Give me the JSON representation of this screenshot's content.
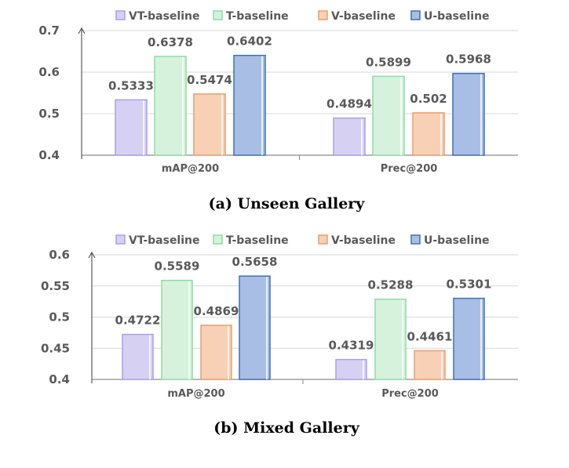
{
  "chart_data": [
    {
      "type": "bar",
      "caption": "(a) Unseen Gallery",
      "categories": [
        "mAP@200",
        "Prec@200"
      ],
      "series": [
        {
          "name": "VT-baseline",
          "values": [
            0.5333,
            0.4894
          ],
          "labels": [
            "0.5333",
            "0.4894"
          ],
          "fill": "#d6d1f3",
          "stroke": "#a99ef0"
        },
        {
          "name": "T-baseline",
          "values": [
            0.6378,
            0.5899
          ],
          "labels": [
            "0.6378",
            "0.5899"
          ],
          "fill": "#d6f2dd",
          "stroke": "#8fdca3"
        },
        {
          "name": "V-baseline",
          "values": [
            0.5474,
            0.502
          ],
          "labels": [
            "0.5474",
            "0.502"
          ],
          "fill": "#f8d0b6",
          "stroke": "#eb9f6b"
        },
        {
          "name": "U-baseline",
          "values": [
            0.6402,
            0.5968
          ],
          "labels": [
            "0.6402",
            "0.5968"
          ],
          "fill": "#a9bee4",
          "stroke": "#3d72b8"
        }
      ],
      "yticks": [
        "0.4",
        "0.5",
        "0.6",
        "0.7"
      ],
      "ylim": [
        0.4,
        0.7
      ],
      "grid": true,
      "legend": "top"
    },
    {
      "type": "bar",
      "caption": "(b) Mixed Gallery",
      "categories": [
        "mAP@200",
        "Prec@200"
      ],
      "series": [
        {
          "name": "VT-baseline",
          "values": [
            0.4722,
            0.4319
          ],
          "labels": [
            "0.4722",
            "0.4319"
          ],
          "fill": "#d6d1f3",
          "stroke": "#a99ef0"
        },
        {
          "name": "T-baseline",
          "values": [
            0.5589,
            0.5288
          ],
          "labels": [
            "0.5589",
            "0.5288"
          ],
          "fill": "#d6f2dd",
          "stroke": "#8fdca3"
        },
        {
          "name": "V-baseline",
          "values": [
            0.4869,
            0.4461
          ],
          "labels": [
            "0.4869",
            "0.4461"
          ],
          "fill": "#f8d0b6",
          "stroke": "#eb9f6b"
        },
        {
          "name": "U-baseline",
          "values": [
            0.5658,
            0.5301
          ],
          "labels": [
            "0.5658",
            "0.5301"
          ],
          "fill": "#a9bee4",
          "stroke": "#3d72b8"
        }
      ],
      "yticks": [
        "0.4",
        "0.45",
        "0.5",
        "0.55",
        "0.6"
      ],
      "ylim": [
        0.4,
        0.6
      ],
      "grid": true,
      "legend": "top"
    }
  ]
}
